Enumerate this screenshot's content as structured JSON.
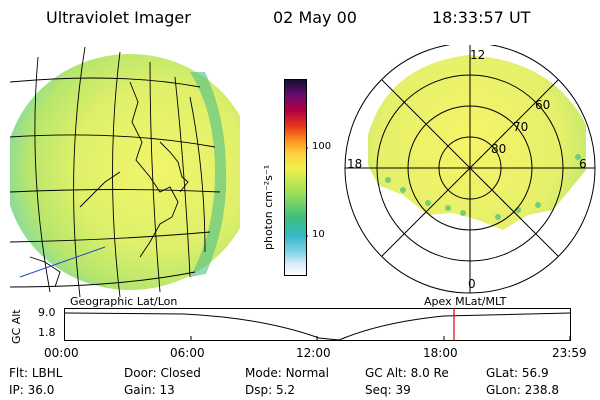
{
  "header": {
    "instrument": "Ultraviolet Imager",
    "date": "02 May 00",
    "time": "18:33:57 UT"
  },
  "colorbar": {
    "unit_label": "photon cm⁻²s⁻¹",
    "ticks": [
      "100",
      "10"
    ]
  },
  "polar": {
    "mlt_labels": {
      "top": "12",
      "left": "18",
      "right": "6",
      "bottom": "0"
    },
    "lat_labels": [
      "60",
      "70",
      "80"
    ]
  },
  "captions": {
    "left": "Geographic Lat/Lon",
    "right": "Apex MLat/MLT"
  },
  "orbit": {
    "y_axis_label": "GC Alt",
    "y_ticks": [
      "9.0",
      "1.8"
    ],
    "x_ticks": [
      "00:00",
      "06:00",
      "12:00",
      "18:00",
      "23:59"
    ],
    "marker_color": "#e00000"
  },
  "info": {
    "row1": [
      {
        "label": "Flt:",
        "value": "LBHL"
      },
      {
        "label": "Door:",
        "value": "Closed"
      },
      {
        "label": "Mode:",
        "value": "Normal"
      },
      {
        "label": "GC Alt:",
        "value": "8.0 Re"
      },
      {
        "label": "GLat:",
        "value": "56.9"
      }
    ],
    "row2": [
      {
        "label": "IP:",
        "value": "36.0"
      },
      {
        "label": "Gain:",
        "value": "13"
      },
      {
        "label": "Dsp:",
        "value": "5.2"
      },
      {
        "label": "Seq:",
        "value": "39"
      },
      {
        "label": "GLon:",
        "value": "238.8"
      }
    ]
  }
}
